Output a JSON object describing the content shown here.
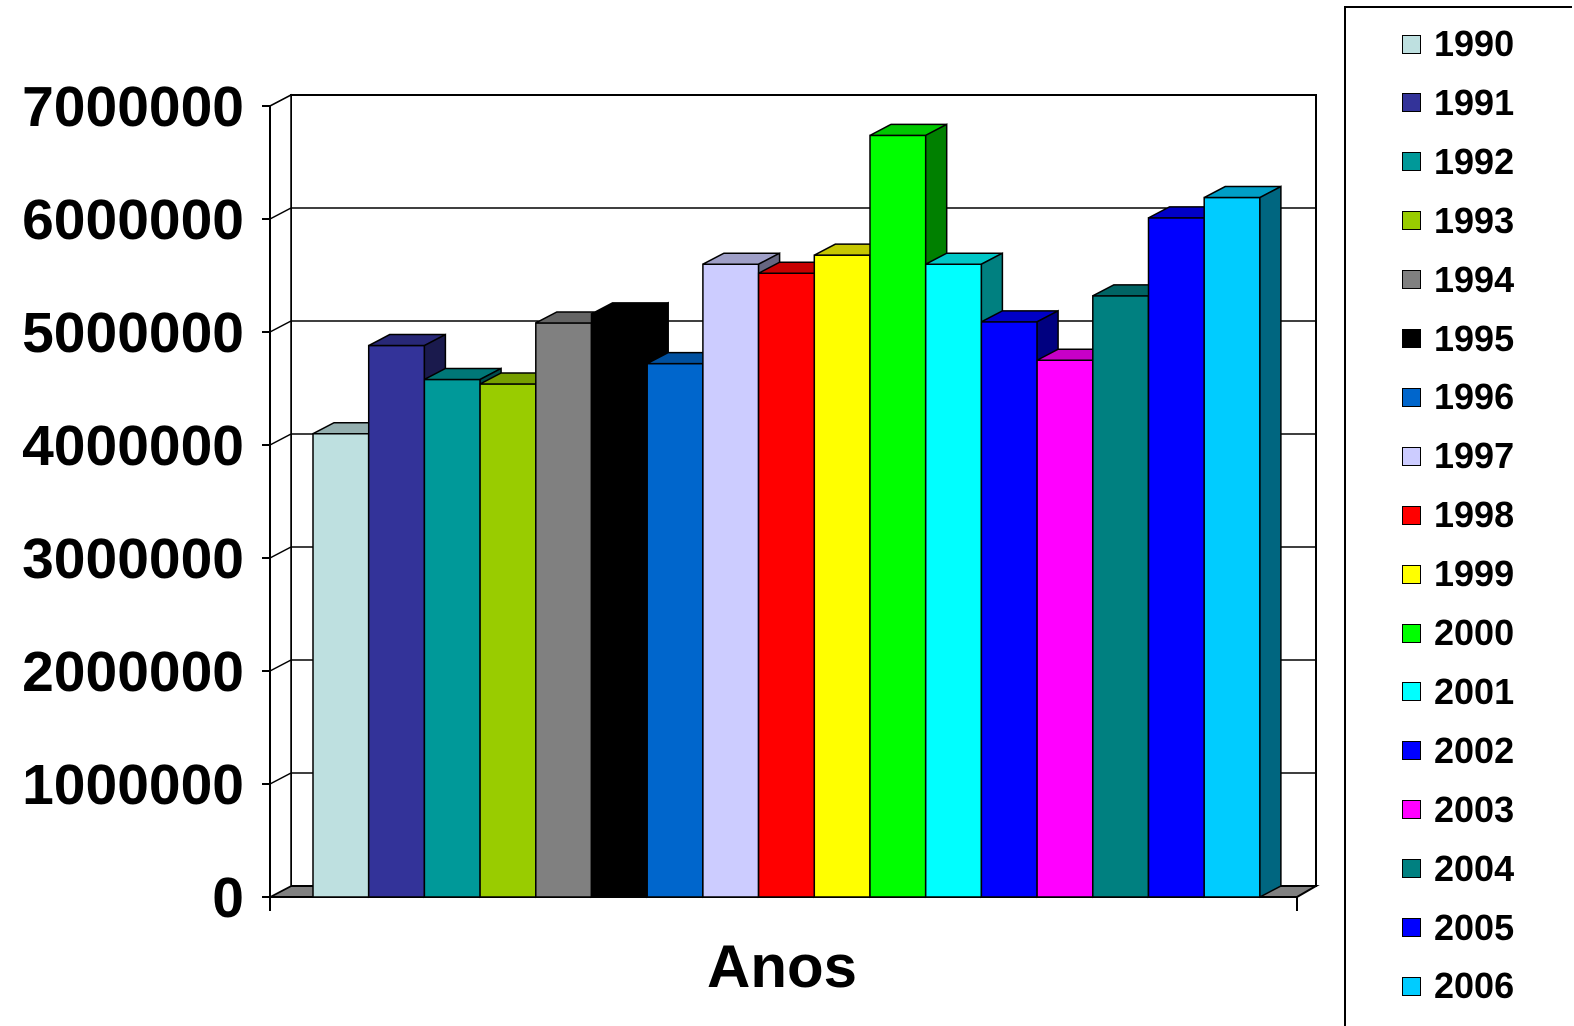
{
  "chart_data": {
    "type": "bar",
    "title": "",
    "xlabel": "Anos",
    "ylabel": "",
    "ylim": [
      0,
      7000000
    ],
    "yticks": [
      "0",
      "1000000",
      "2000000",
      "3000000",
      "4000000",
      "5000000",
      "6000000",
      "7000000"
    ],
    "grid": true,
    "legend_position": "right",
    "series": [
      {
        "name": "1990",
        "color": "#BEE0E0",
        "value": 4100000
      },
      {
        "name": "1991",
        "color": "#333399",
        "value": 4880000
      },
      {
        "name": "1992",
        "color": "#009999",
        "value": 4580000
      },
      {
        "name": "1993",
        "color": "#99CC00",
        "value": 4540000
      },
      {
        "name": "1994",
        "color": "#808080",
        "value": 5080000
      },
      {
        "name": "1995",
        "color": "#000000",
        "value": 5160000
      },
      {
        "name": "1996",
        "color": "#0066CC",
        "value": 4720000
      },
      {
        "name": "1997",
        "color": "#CCCCFF",
        "value": 5600000
      },
      {
        "name": "1998",
        "color": "#FF0000",
        "value": 5520000
      },
      {
        "name": "1999",
        "color": "#FFFF00",
        "value": 5680000
      },
      {
        "name": "2000",
        "color": "#00FF00",
        "value": 6740000
      },
      {
        "name": "2001",
        "color": "#00FFFF",
        "value": 5600000
      },
      {
        "name": "2002",
        "color": "#0000FF",
        "value": 5090000
      },
      {
        "name": "2003",
        "color": "#FF00FF",
        "value": 4750000
      },
      {
        "name": "2004",
        "color": "#008080",
        "value": 5320000
      },
      {
        "name": "2005",
        "color": "#0000FF",
        "value": 6010000
      },
      {
        "name": "2006",
        "color": "#00CCFF",
        "value": 6190000
      }
    ]
  }
}
